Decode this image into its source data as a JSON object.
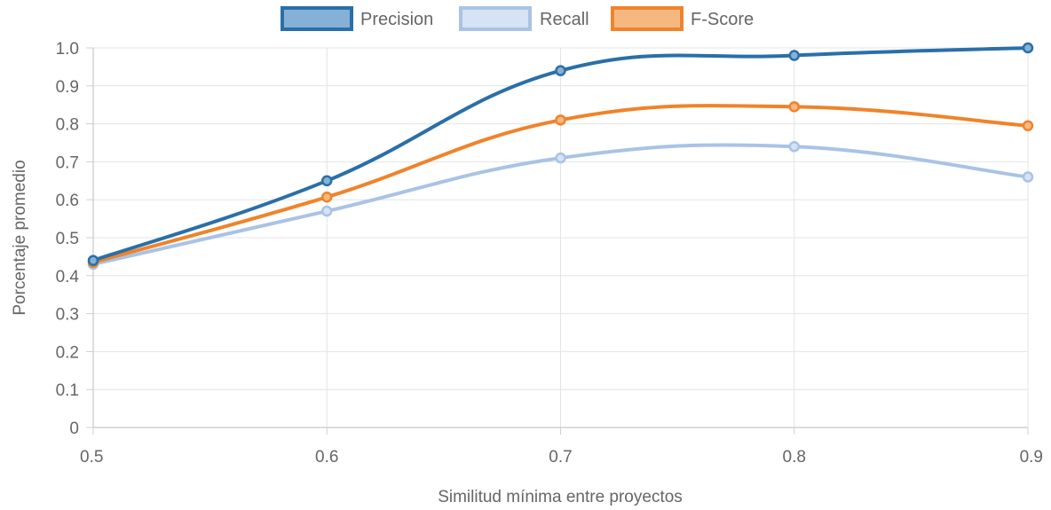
{
  "chart_data": {
    "type": "line",
    "x": [
      0.5,
      0.6,
      0.7,
      0.8,
      0.9
    ],
    "x_tick_labels": [
      "0.5",
      "0.6",
      "0.7",
      "0.8",
      "0.9"
    ],
    "y_tick_labels": [
      "0",
      "0.1",
      "0.2",
      "0.3",
      "0.4",
      "0.5",
      "0.6",
      "0.7",
      "0.8",
      "0.9",
      "1.0"
    ],
    "xlim": [
      0.5,
      0.9
    ],
    "ylim": [
      0,
      1.0
    ],
    "xlabel": "Similitud mínima entre proyectos",
    "ylabel": "Porcentaje promedio",
    "grid": true,
    "legend_position": "top-center",
    "smooth": true,
    "series": [
      {
        "name": "Precision",
        "values": [
          0.44,
          0.65,
          0.94,
          0.98,
          1.0
        ],
        "color": "#2a6fa8",
        "fill": "#86b1d6"
      },
      {
        "name": "Recall",
        "values": [
          0.43,
          0.57,
          0.71,
          0.74,
          0.66
        ],
        "color": "#a9c3e6",
        "fill": "#d6e3f4"
      },
      {
        "name": "F-Score",
        "values": [
          0.435,
          0.607,
          0.81,
          0.845,
          0.795
        ],
        "color": "#f0832a",
        "fill": "#f6b881"
      }
    ]
  }
}
